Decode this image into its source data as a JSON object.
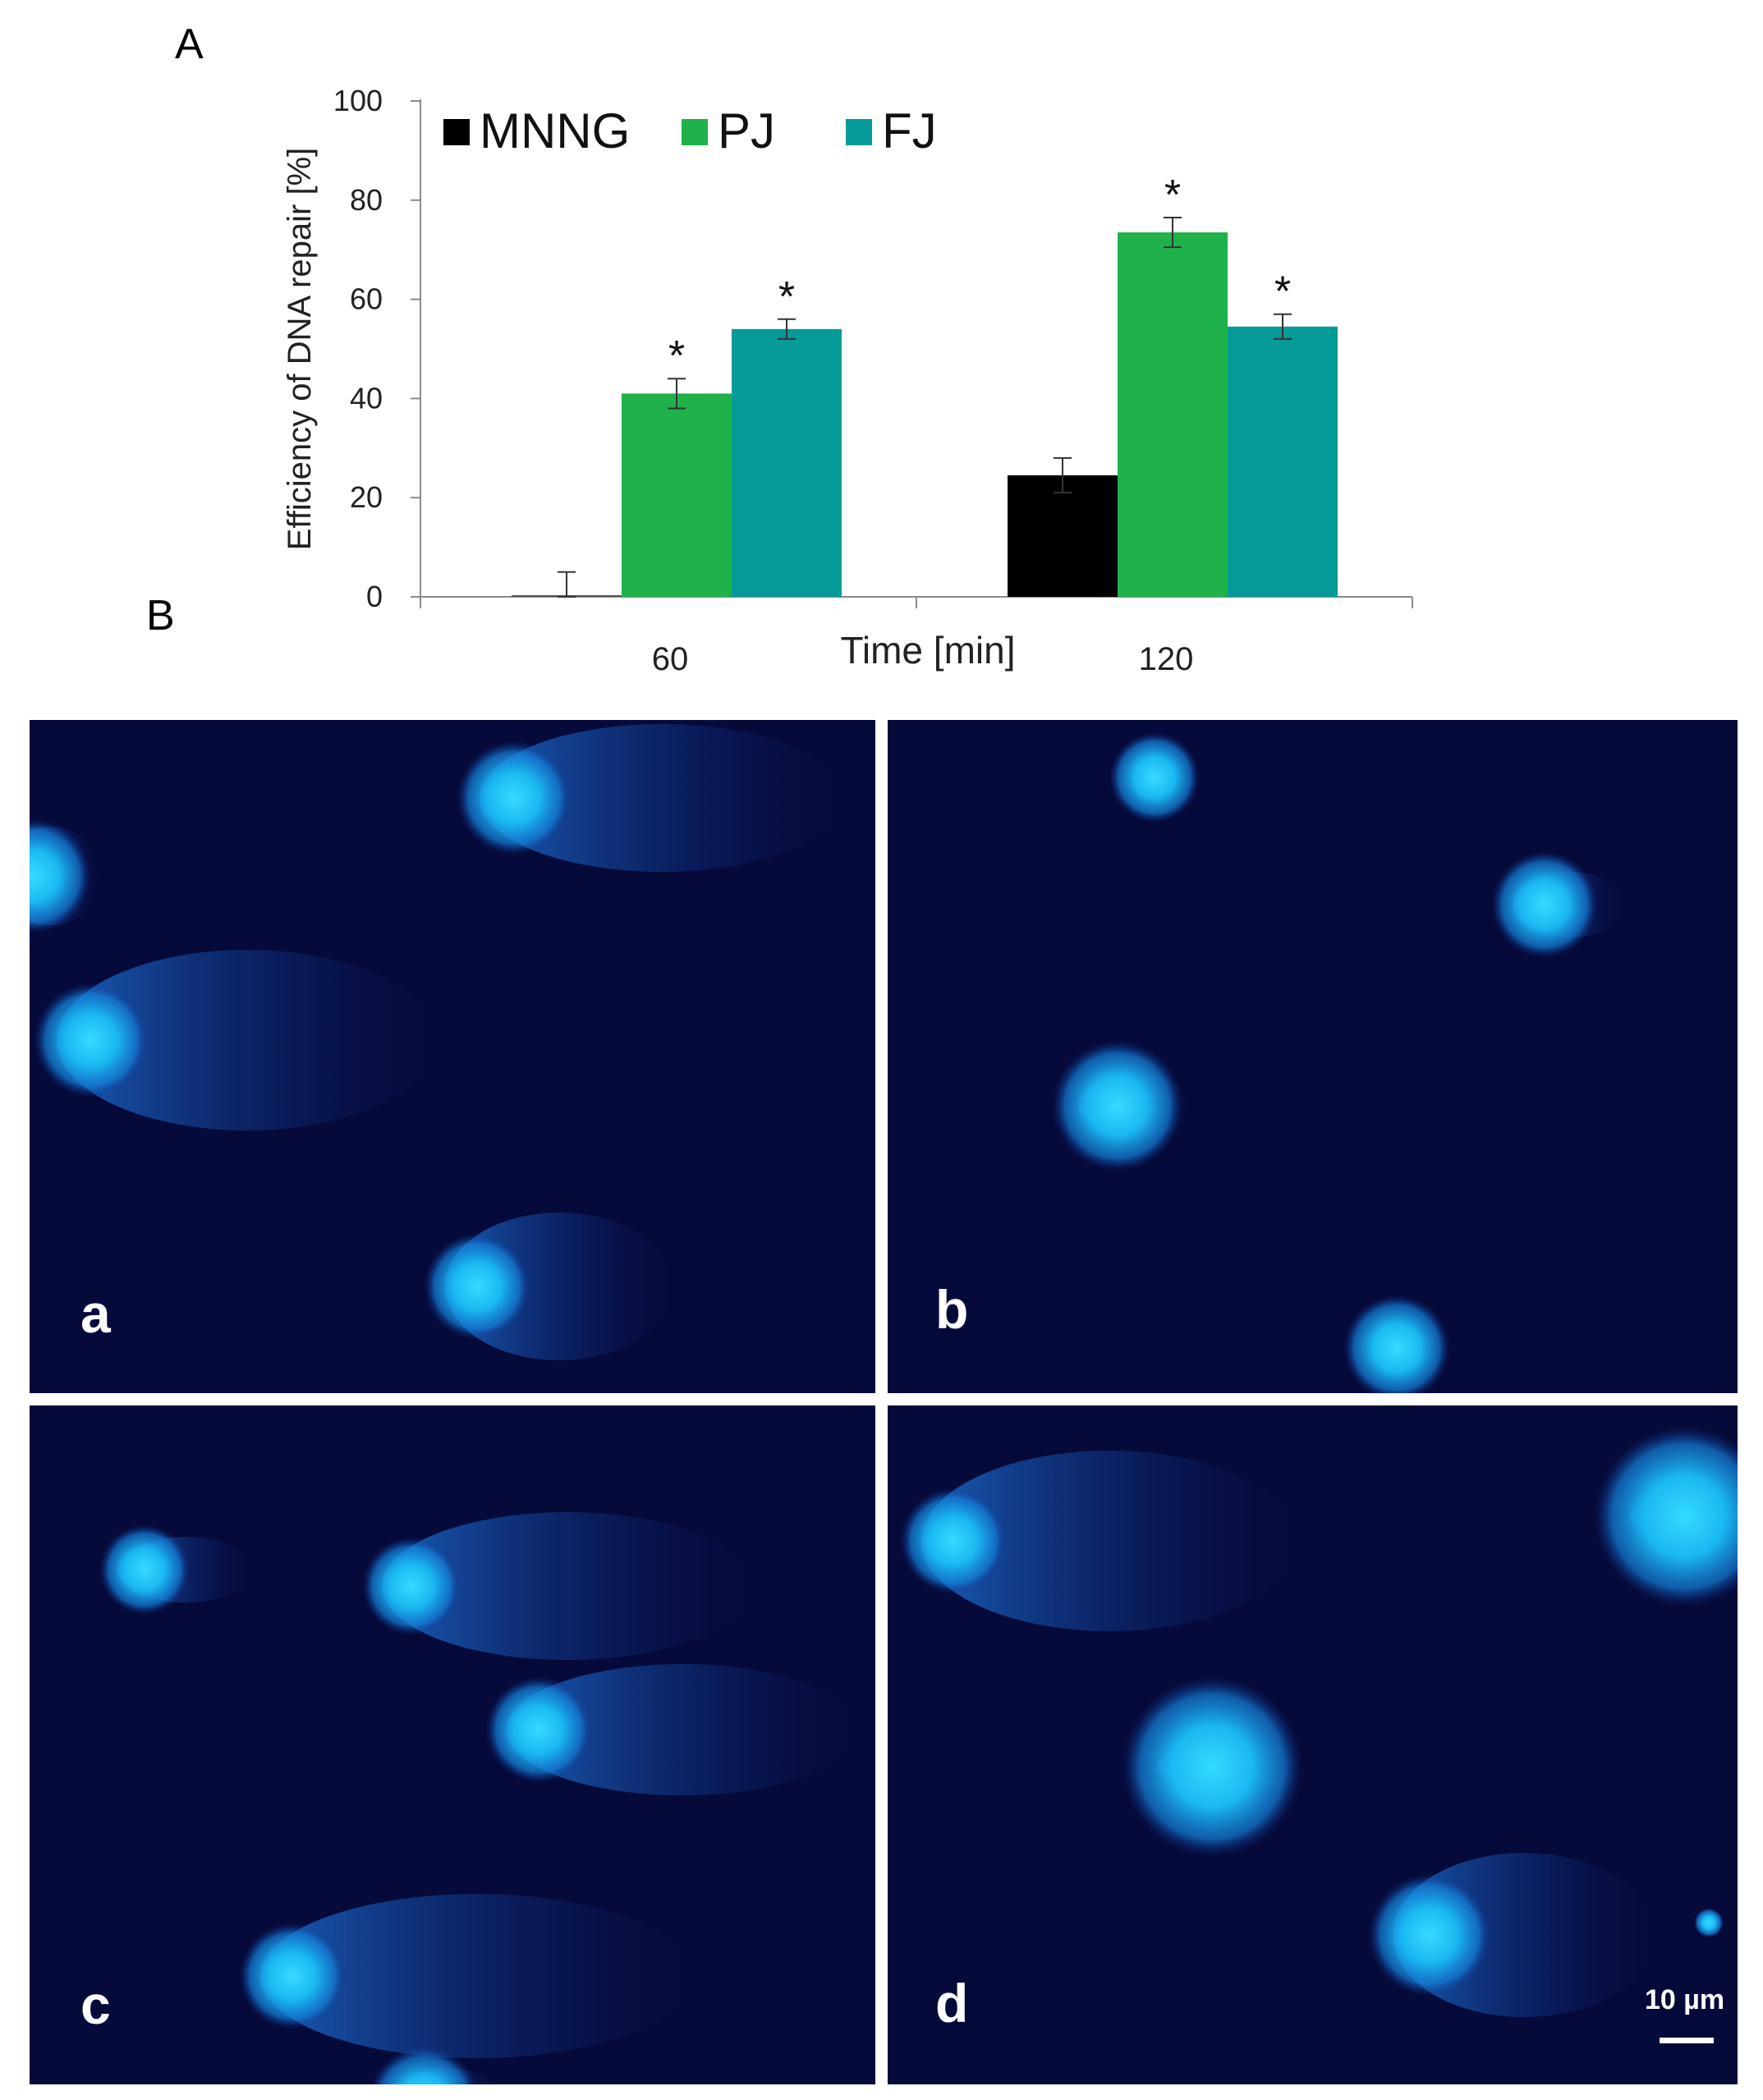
{
  "panel_labels": {
    "A": "A",
    "B": "B"
  },
  "chart_data": {
    "type": "bar",
    "categories": [
      "60",
      "120"
    ],
    "xlabel": "Time [min]",
    "ylabel": "Efficiency of DNA repair [%]",
    "ylim": [
      0,
      100
    ],
    "yticks": [
      0,
      20,
      40,
      60,
      80,
      100
    ],
    "legend_position": "top-left",
    "series": [
      {
        "name": "MNNG",
        "color": "#000000",
        "values": [
          0.5,
          24.5
        ],
        "errors": [
          4.5,
          3.5
        ],
        "significant": [
          false,
          false
        ]
      },
      {
        "name": "PJ",
        "color": "#1fb24a",
        "values": [
          41,
          73.5
        ],
        "errors": [
          3.0,
          3.0
        ],
        "significant": [
          true,
          true
        ]
      },
      {
        "name": "FJ",
        "color": "#069a98",
        "values": [
          54,
          54.5
        ],
        "errors": [
          2.0,
          2.5
        ],
        "significant": [
          true,
          true
        ]
      }
    ],
    "significance_marker": "*"
  },
  "micrographs": [
    {
      "label": "a"
    },
    {
      "label": "b"
    },
    {
      "label": "c"
    },
    {
      "label": "d"
    }
  ],
  "scale_bar": {
    "label": "10 µm"
  },
  "colors": {
    "micrograph_background": "#060a3a",
    "comet_core": "#27c8ff",
    "comet_tail": "#1a66c8"
  }
}
